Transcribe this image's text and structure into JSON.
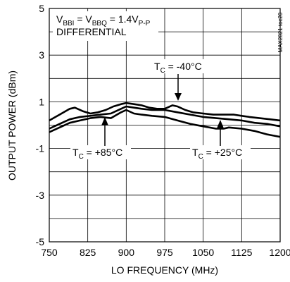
{
  "chart_data": {
    "type": "line",
    "title": "",
    "xlabel": "LO FREQUENCY (MHz)",
    "ylabel": "OUTPUT POWER (dBm)",
    "xlim": [
      750,
      1200
    ],
    "ylim": [
      -5,
      5
    ],
    "xticks": [
      750,
      825,
      900,
      975,
      1050,
      1125,
      1200
    ],
    "yticks": [
      -5,
      -3,
      -1,
      1,
      3,
      5
    ],
    "grid": true,
    "legend": "none",
    "watermark": "MAX2021 toc20",
    "condition": {
      "line1_main": "V",
      "line1_sub1": "BBI",
      "line1_mid": " = V",
      "line1_sub2": "BBQ",
      "line1_end": " = 1.4V",
      "line1_sub3": "P-P",
      "line2": "DIFFERENTIAL"
    },
    "series": [
      {
        "label_main": "T",
        "label_sub": "C",
        "label_rest": " = -40°C",
        "x": [
          750,
          770,
          790,
          800,
          815,
          830,
          845,
          860,
          875,
          890,
          900,
          915,
          930,
          945,
          960,
          975,
          990,
          1000,
          1015,
          1030,
          1050,
          1070,
          1090,
          1110,
          1125,
          1140,
          1160,
          1180,
          1200
        ],
        "y": [
          0.2,
          0.45,
          0.7,
          0.75,
          0.6,
          0.5,
          0.55,
          0.65,
          0.8,
          0.9,
          0.95,
          0.9,
          0.85,
          0.75,
          0.7,
          0.7,
          0.85,
          0.8,
          0.65,
          0.55,
          0.5,
          0.45,
          0.45,
          0.45,
          0.4,
          0.35,
          0.3,
          0.25,
          0.2
        ]
      },
      {
        "label_main": "T",
        "label_sub": "C",
        "label_rest": " = +25°C",
        "x": [
          750,
          770,
          790,
          810,
          830,
          850,
          870,
          890,
          900,
          915,
          930,
          950,
          975,
          1000,
          1025,
          1050,
          1075,
          1100,
          1125,
          1150,
          1175,
          1200
        ],
        "y": [
          -0.15,
          0.05,
          0.25,
          0.35,
          0.4,
          0.45,
          0.5,
          0.7,
          0.8,
          0.75,
          0.7,
          0.65,
          0.65,
          0.55,
          0.45,
          0.35,
          0.3,
          0.25,
          0.2,
          0.1,
          0.05,
          -0.05
        ]
      },
      {
        "label_main": "T",
        "label_sub": "C",
        "label_rest": " = +85°C",
        "x": [
          750,
          770,
          790,
          810,
          830,
          850,
          870,
          890,
          900,
          915,
          930,
          950,
          975,
          1000,
          1025,
          1050,
          1075,
          1090,
          1100,
          1125,
          1150,
          1175,
          1200
        ],
        "y": [
          -0.3,
          -0.1,
          0.1,
          0.2,
          0.3,
          0.35,
          0.3,
          0.55,
          0.65,
          0.5,
          0.45,
          0.4,
          0.35,
          0.2,
          0.05,
          -0.05,
          -0.15,
          -0.15,
          -0.1,
          -0.15,
          -0.25,
          -0.4,
          -0.5
        ]
      }
    ]
  }
}
